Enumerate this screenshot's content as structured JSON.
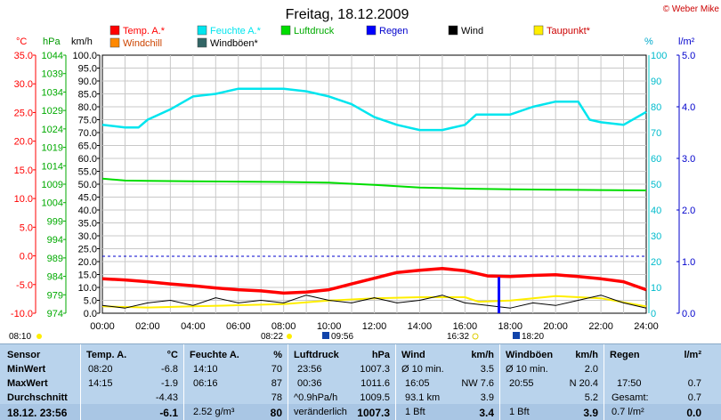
{
  "title": "Freitag, 18.12.2009",
  "copyright": "© Weber Mike",
  "legend": [
    {
      "name": "Temp. A.*",
      "color": "#ff0000"
    },
    {
      "name": "Feuchte A.*",
      "color": "#00e5ee"
    },
    {
      "name": "Luftdruck",
      "color": "#00dd00"
    },
    {
      "name": "Regen",
      "color": "#0000ff"
    },
    {
      "name": "Wind",
      "color": "#000000"
    },
    {
      "name": "Taupunkt*",
      "color": "#ffee00"
    },
    {
      "name": "Windchill",
      "color": "#ff8800"
    },
    {
      "name": "Windböen*",
      "color": "#336666"
    }
  ],
  "axis_units": {
    "temp": "°C",
    "pressure": "hPa",
    "wind": "km/h",
    "humidity": "%",
    "rain": "l/m²"
  },
  "markers": {
    "sunrise": "08:10",
    "sunset": "16:32",
    "moon1": "08:22",
    "moon2": "09:56",
    "moon3": "18:20"
  },
  "chart_data": {
    "type": "line",
    "x_label_ticks": [
      "00:00",
      "02:00",
      "04:00",
      "06:00",
      "08:00",
      "10:00",
      "12:00",
      "14:00",
      "16:00",
      "18:00",
      "20:00",
      "22:00",
      "24:00"
    ],
    "axes": {
      "temp": {
        "min": -10,
        "max": 35,
        "ticks": [
          "35.0",
          "30.0",
          "25.0",
          "20.0",
          "15.0",
          "10.0",
          "5.0",
          "0.0",
          "-5.0",
          "-10.0"
        ]
      },
      "pressure": {
        "min": 974,
        "max": 1044,
        "ticks": [
          "1044",
          "1039",
          "1034",
          "1029",
          "1024",
          "1019",
          "1014",
          "1009",
          "1004",
          "999",
          "994",
          "989",
          "984",
          "979",
          "974"
        ]
      },
      "wind": {
        "min": 0,
        "max": 100,
        "ticks": [
          "100.0",
          "95.0",
          "90.0",
          "85.0",
          "80.0",
          "75.0",
          "70.0",
          "65.0",
          "60.0",
          "55.0",
          "50.0",
          "45.0",
          "40.0",
          "35.0",
          "30.0",
          "25.0",
          "20.0",
          "15.0",
          "10.0",
          "5.0",
          "0.0"
        ]
      },
      "humidity": {
        "min": 0,
        "max": 100,
        "ticks": [
          "100",
          "90",
          "80",
          "70",
          "60",
          "50",
          "40",
          "30",
          "20",
          "10",
          "0"
        ]
      },
      "rain": {
        "min": 0,
        "max": 5,
        "ticks": [
          "5.0",
          "4.0",
          "3.0",
          "2.0",
          "1.0",
          "0.0"
        ]
      }
    },
    "series": [
      {
        "name": "Feuchte A.*",
        "axis": "humidity",
        "x": [
          0,
          1,
          1.6,
          2,
          3,
          4,
          5,
          6,
          7,
          8,
          9,
          10,
          11,
          12,
          13,
          14,
          15,
          16,
          16.5,
          17,
          18,
          19,
          20,
          21,
          21.5,
          22,
          23,
          24
        ],
        "y": [
          73,
          72,
          72,
          75,
          79,
          84,
          85,
          87,
          87,
          87,
          86,
          84,
          81,
          76,
          73,
          71,
          71,
          73,
          77,
          77,
          77,
          80,
          82,
          82,
          75,
          74,
          73,
          78
        ]
      },
      {
        "name": "Luftdruck",
        "axis": "pressure",
        "x": [
          0,
          1,
          2,
          4,
          6,
          8,
          10,
          12,
          14,
          16,
          18,
          20,
          22,
          24
        ],
        "y": [
          1010.5,
          1010.0,
          1009.9,
          1009.8,
          1009.7,
          1009.6,
          1009.4,
          1008.8,
          1008.1,
          1007.8,
          1007.6,
          1007.5,
          1007.4,
          1007.3
        ]
      },
      {
        "name": "Temp. A.*",
        "axis": "temp",
        "x": [
          0,
          1,
          2,
          3,
          4,
          5,
          6,
          7,
          8,
          9,
          10,
          11,
          12,
          13,
          14,
          15,
          16,
          17,
          18,
          19,
          20,
          21,
          22,
          23,
          24
        ],
        "y": [
          -4.0,
          -4.2,
          -4.5,
          -4.9,
          -5.2,
          -5.6,
          -5.9,
          -6.1,
          -6.5,
          -6.3,
          -5.9,
          -4.9,
          -3.9,
          -2.9,
          -2.5,
          -2.2,
          -2.6,
          -3.5,
          -3.6,
          -3.4,
          -3.3,
          -3.6,
          -4.0,
          -4.5,
          -5.9
        ]
      },
      {
        "name": "Taupunkt*",
        "axis": "temp",
        "x": [
          0,
          2,
          4,
          6,
          8,
          10,
          12,
          14,
          16,
          16.6,
          18,
          20,
          22,
          24
        ],
        "y": [
          -8.8,
          -9.0,
          -8.8,
          -8.6,
          -8.4,
          -7.8,
          -7.4,
          -7.2,
          -7.2,
          -8.0,
          -7.8,
          -7.0,
          -7.4,
          -8.8
        ]
      },
      {
        "name": "Wind",
        "axis": "wind",
        "x": [
          0,
          1,
          2,
          3,
          4,
          5,
          6,
          7,
          8,
          9,
          10,
          11,
          12,
          13,
          14,
          15,
          16,
          17,
          18,
          19,
          20,
          21,
          22,
          23,
          24
        ],
        "y": [
          3,
          2,
          4,
          5,
          3,
          6,
          4,
          5,
          4,
          7,
          5,
          4,
          6,
          4,
          5,
          7,
          4,
          3,
          2,
          4,
          3,
          5,
          7,
          4,
          2
        ]
      },
      {
        "name": "Regen",
        "axis": "rain",
        "x": [
          17.5
        ],
        "y": [
          0.7
        ]
      }
    ]
  },
  "table": {
    "columns": [
      {
        "head": "Temp. A.",
        "unit": "°C"
      },
      {
        "head": "Feuchte A.",
        "unit": "%"
      },
      {
        "head": "Luftdruck",
        "unit": "hPa"
      },
      {
        "head": "Wind",
        "unit": "km/h"
      },
      {
        "head": "Windböen",
        "unit": "km/h"
      },
      {
        "head": "Regen",
        "unit": "l/m²"
      }
    ],
    "row_labels": [
      "Sensor",
      "MinWert",
      "MaxWert",
      "Durchschnitt",
      "18.12. 23:56"
    ],
    "temp": {
      "min_time": "08:20",
      "min": "-6.8",
      "max_time": "14:15",
      "max": "-1.9",
      "avg": "-4.43",
      "now": "-6.1"
    },
    "hum": {
      "min_time": "14:10",
      "min": "70",
      "max_time": "06:16",
      "max": "87",
      "avg": "78",
      "dew": "2.52 g/m³",
      "now": "80"
    },
    "press": {
      "min_time": "23:56",
      "min": "1007.3",
      "max_time": "00:36",
      "max": "1011.6",
      "trend_label": "^0.9hPa/h",
      "trend": "1009.5",
      "dist": "",
      "tend": "veränderlich",
      "now": "1007.3"
    },
    "wind": {
      "l1": "Ø 10 min.",
      "v1": "3.5",
      "l2": "16:05",
      "v2": "NW 7.6",
      "l3": "93.1 km",
      "v3": "3.9",
      "l4": "1 Bft",
      "now": "3.4"
    },
    "gust": {
      "l1": "Ø 10 min.",
      "v1": "2.0",
      "l2": "20:55",
      "v2": "N 20.4",
      "v3": "5.2",
      "l4": "1 Bft",
      "now": "3.9"
    },
    "rain": {
      "l2": "17:50",
      "v2": "0.7",
      "l3": "Gesamt:",
      "v3": "0.7",
      "l4": "0.7 l/m²",
      "now": "0.0"
    }
  }
}
